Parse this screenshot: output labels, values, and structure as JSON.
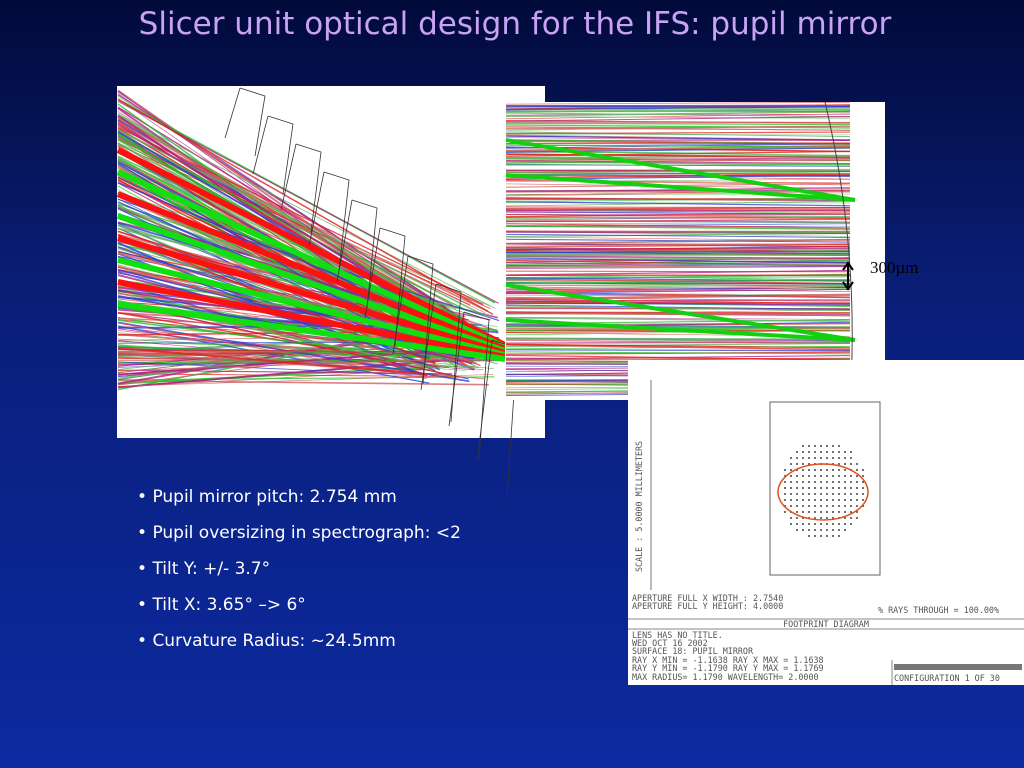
{
  "title": "Slicer unit optical design for the IFS: pupil mirror",
  "bullets": [
    "Pupil mirror pitch: 2.754 mm",
    "Pupil oversizing in spectrograph: <2",
    "Tilt Y: +/- 3.7°",
    "Tilt X: 3.65° –> 6°",
    "Curvature Radius: ~24.5mm"
  ],
  "annotation": "300µm",
  "footprint": {
    "scale": "SCALE : 5.0000 MILLIMETERS",
    "aperture": [
      "APERTURE FULL X WIDTH : 2.7540",
      "APERTURE FULL Y HEIGHT: 4.0000"
    ],
    "rays_through": "% RAYS THROUGH = 100.00%",
    "heading": "FOOTPRINT DIAGRAM",
    "info": [
      "LENS HAS NO TITLE.",
      "WED OCT 16 2002",
      "SURFACE 18: PUPIL MIRROR",
      "RAY X MIN =   -1.1638 RAY X MAX =    1.1638",
      "RAY Y MIN =   -1.1790 RAY Y MAX =    1.1769",
      "MAX RADIUS=    1.1790 WAVELENGTH=    2.0000"
    ],
    "configuration": "CONFIGURATION 1 OF 30"
  }
}
